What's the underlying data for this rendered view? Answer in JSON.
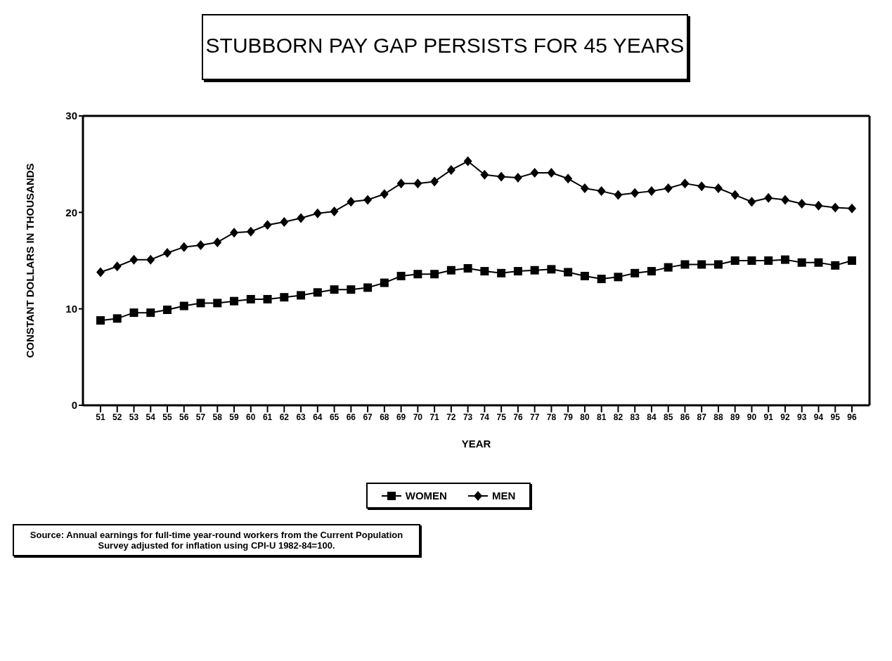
{
  "chart_data": {
    "type": "line",
    "title": "STUBBORN PAY GAP PERSISTS FOR 45 YEARS",
    "xlabel": "YEAR",
    "ylabel": "CONSTANT DOLLARS IN THOUSANDS",
    "categories": [
      "51",
      "52",
      "53",
      "54",
      "55",
      "56",
      "57",
      "58",
      "59",
      "60",
      "61",
      "62",
      "63",
      "64",
      "65",
      "66",
      "67",
      "68",
      "69",
      "70",
      "71",
      "72",
      "73",
      "74",
      "75",
      "76",
      "77",
      "78",
      "79",
      "80",
      "81",
      "82",
      "83",
      "84",
      "85",
      "86",
      "87",
      "88",
      "89",
      "90",
      "91",
      "92",
      "93",
      "94",
      "95",
      "96"
    ],
    "series": [
      {
        "name": "WOMEN",
        "color": "#000000",
        "marker": "square",
        "values": [
          8.8,
          9.0,
          9.6,
          9.6,
          9.9,
          10.3,
          10.6,
          10.6,
          10.8,
          11.0,
          11.0,
          11.2,
          11.4,
          11.7,
          12.0,
          12.0,
          12.2,
          12.7,
          13.4,
          13.6,
          13.6,
          14.0,
          14.2,
          13.9,
          13.7,
          13.9,
          14.0,
          14.1,
          13.8,
          13.4,
          13.1,
          13.3,
          13.7,
          13.9,
          14.3,
          14.6,
          14.6,
          14.6,
          15.0,
          15.0,
          15.0,
          15.1,
          14.8,
          14.8,
          14.5,
          15.0
        ]
      },
      {
        "name": "MEN",
        "color": "#000000",
        "marker": "diamond",
        "values": [
          13.8,
          14.4,
          15.1,
          15.1,
          15.8,
          16.4,
          16.6,
          16.9,
          17.9,
          18.0,
          18.7,
          19.0,
          19.4,
          19.9,
          20.1,
          21.1,
          21.3,
          21.9,
          23.0,
          23.0,
          23.2,
          24.4,
          25.3,
          23.9,
          23.7,
          23.6,
          24.1,
          24.1,
          23.5,
          22.5,
          22.2,
          21.8,
          22.0,
          22.2,
          22.5,
          23.0,
          22.7,
          22.5,
          21.8,
          21.1,
          21.5,
          21.3,
          20.9,
          20.7,
          20.5,
          20.4
        ]
      }
    ],
    "ylim": [
      0,
      30
    ],
    "yticks": [
      0,
      10,
      20,
      30
    ],
    "grid": false,
    "legend": "bottom",
    "line_style": "solid",
    "annotations": [
      "Source: Annual earnings for full-time year-round workers from the Current Population Survey adjusted for inflation using CPI-U 1982-84=100."
    ]
  }
}
